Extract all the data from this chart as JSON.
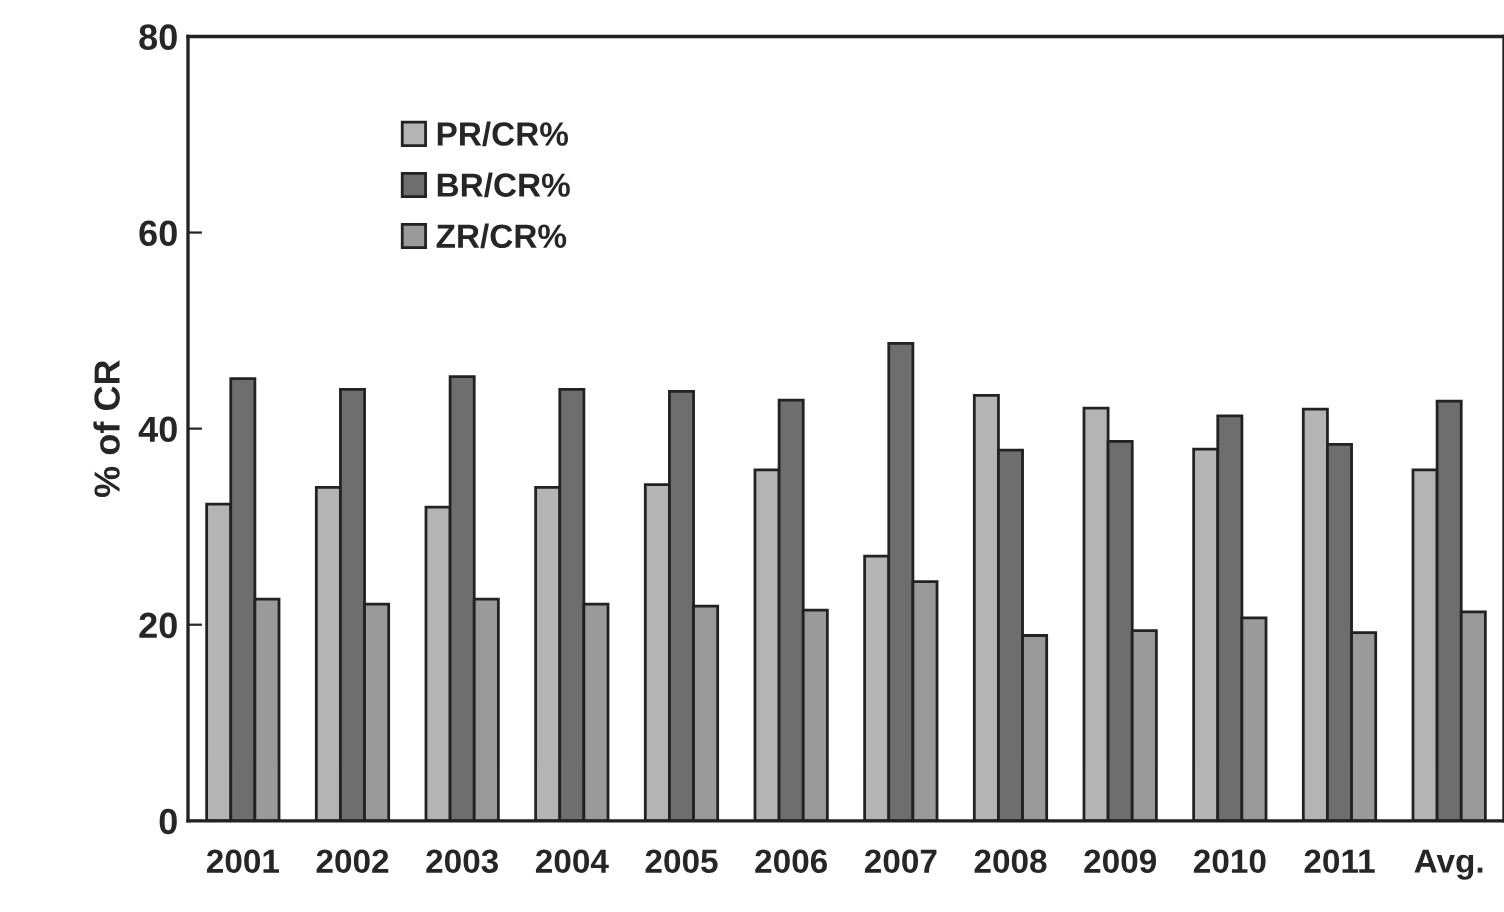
{
  "chart_data": {
    "type": "bar",
    "ylabel": "% of CR",
    "categories": [
      "2001",
      "2002",
      "2003",
      "2004",
      "2005",
      "2006",
      "2007",
      "2008",
      "2009",
      "2010",
      "2011",
      "Avg."
    ],
    "series": [
      {
        "name": "PR/CR%",
        "color": "#b4b4b4",
        "values": [
          32.3,
          34.0,
          32.0,
          34.0,
          34.3,
          35.8,
          27.0,
          43.4,
          42.1,
          37.9,
          42.0,
          35.8
        ]
      },
      {
        "name": "BR/CR%",
        "color": "#6e6e6e",
        "values": [
          45.1,
          44.0,
          45.3,
          44.0,
          43.8,
          42.9,
          48.7,
          37.8,
          38.7,
          41.3,
          38.4,
          42.8
        ]
      },
      {
        "name": "ZR/CR%",
        "color": "#9a9a9a",
        "values": [
          22.6,
          22.1,
          22.6,
          22.1,
          21.9,
          21.5,
          24.4,
          18.9,
          19.4,
          20.7,
          19.2,
          21.3
        ]
      }
    ],
    "ylim": [
      0,
      80
    ],
    "yticks": [
      0,
      20,
      40,
      60,
      80
    ],
    "grid": false,
    "legend": "top left"
  }
}
